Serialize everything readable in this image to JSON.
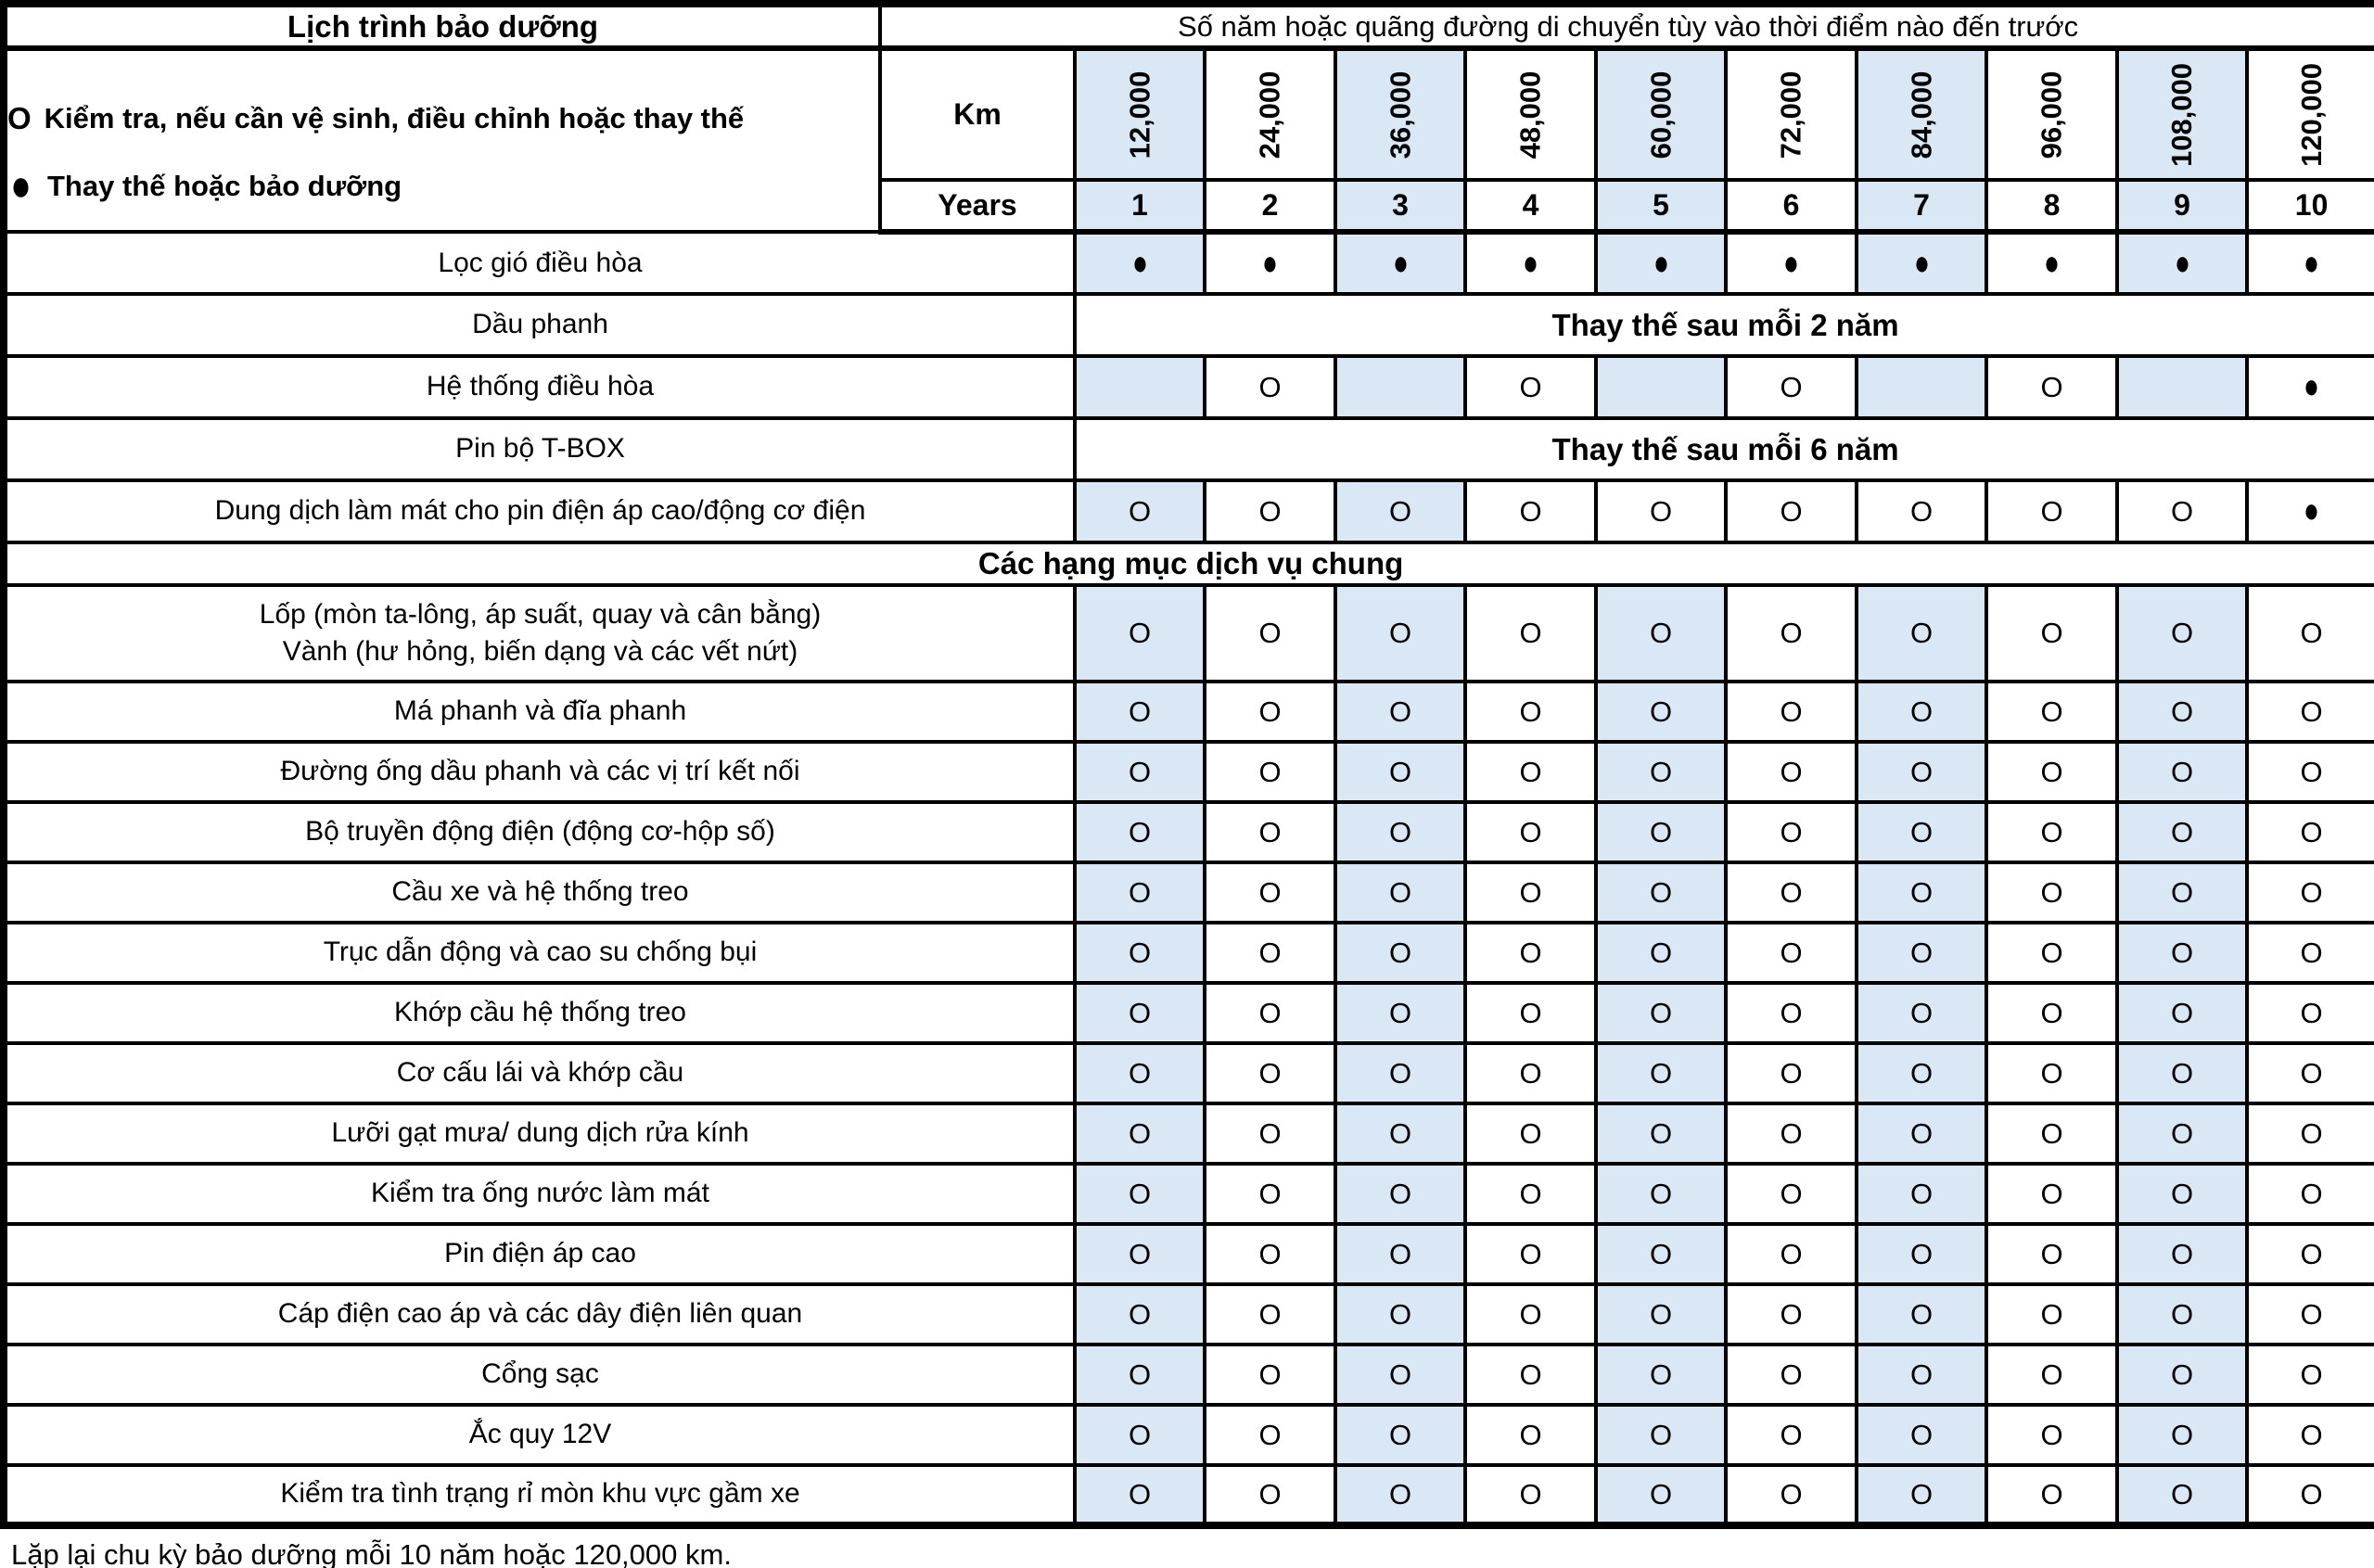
{
  "header": {
    "title": "Lịch trình bảo dưỡng",
    "subtitle": "Số năm hoặc quãng đường di chuyển tùy vào thời điểm nào đến trước",
    "legend": [
      {
        "symbol": "O",
        "text": "Kiểm tra, nếu cần vệ sinh, điều chỉnh hoặc thay thế"
      },
      {
        "symbol": "●",
        "text": "Thay thế hoặc bảo dưỡng"
      }
    ],
    "km_label": "Km",
    "years_label": "Years",
    "km_values": [
      "12,000",
      "24,000",
      "36,000",
      "48,000",
      "60,000",
      "72,000",
      "84,000",
      "96,000",
      "108,000",
      "120,000"
    ],
    "year_values": [
      "1",
      "2",
      "3",
      "4",
      "5",
      "6",
      "7",
      "8",
      "9",
      "10"
    ],
    "shaded_columns": [
      0,
      2,
      4,
      6,
      8
    ]
  },
  "symbols": {
    "inspect": "O",
    "replace": "●"
  },
  "colors": {
    "shaded_column": "#DAE7F4",
    "border": "#000000",
    "background": "#FFFFFF"
  },
  "sections": [
    {
      "title": "",
      "rows": [
        {
          "label": "Lọc gió điều hòa",
          "cells": [
            "●",
            "●",
            "●",
            "●",
            "●",
            "●",
            "●",
            "●",
            "●",
            "●"
          ],
          "shade": [
            0,
            2,
            4,
            6,
            8
          ]
        },
        {
          "label": "Dầu phanh",
          "merged": "Thay thế sau mỗi 2 năm"
        },
        {
          "label": "Hệ thống điều hòa",
          "cells": [
            "",
            "O",
            "",
            "O",
            "",
            "O",
            "",
            "O",
            "",
            "●"
          ],
          "shade": [
            0,
            2,
            4,
            6,
            8
          ]
        },
        {
          "label": "Pin bộ T-BOX",
          "merged": "Thay thế sau mỗi 6 năm"
        },
        {
          "label": "Dung dịch làm mát cho pin điện áp cao/động cơ điện",
          "cells": [
            "O",
            "O",
            "O",
            "O",
            "O",
            "O",
            "O",
            "O",
            "O",
            "●"
          ],
          "shade": [
            0,
            2
          ]
        }
      ]
    },
    {
      "title": "Các hạng mục dịch vụ chung",
      "rows": [
        {
          "label": "Lốp (mòn ta-lông, áp suất, quay và cân bằng)",
          "label2": "Vành (hư hỏng, biến dạng và các vết nứt)",
          "cells": [
            "O",
            "O",
            "O",
            "O",
            "O",
            "O",
            "O",
            "O",
            "O",
            "O"
          ],
          "shade": [
            0,
            2,
            4,
            6,
            8
          ]
        },
        {
          "label": "Má phanh và đĩa phanh",
          "cells": [
            "O",
            "O",
            "O",
            "O",
            "O",
            "O",
            "O",
            "O",
            "O",
            "O"
          ],
          "shade": [
            0,
            2,
            4,
            6,
            8
          ]
        },
        {
          "label": "Đường ống dầu phanh và các vị trí kết nối",
          "cells": [
            "O",
            "O",
            "O",
            "O",
            "O",
            "O",
            "O",
            "O",
            "O",
            "O"
          ],
          "shade": [
            0,
            2,
            4,
            6,
            8
          ]
        },
        {
          "label": "Bộ truyền động điện (động cơ-hộp số)",
          "cells": [
            "O",
            "O",
            "O",
            "O",
            "O",
            "O",
            "O",
            "O",
            "O",
            "O"
          ],
          "shade": [
            0,
            2,
            4,
            6,
            8
          ]
        },
        {
          "label": "Cầu xe và hệ thống treo",
          "cells": [
            "O",
            "O",
            "O",
            "O",
            "O",
            "O",
            "O",
            "O",
            "O",
            "O"
          ],
          "shade": [
            0,
            2,
            4,
            6,
            8
          ]
        },
        {
          "label": "Trục dẫn động và cao su chống bụi",
          "cells": [
            "O",
            "O",
            "O",
            "O",
            "O",
            "O",
            "O",
            "O",
            "O",
            "O"
          ],
          "shade": [
            0,
            2,
            4,
            6,
            8
          ]
        },
        {
          "label": "Khớp cầu hệ thống treo",
          "cells": [
            "O",
            "O",
            "O",
            "O",
            "O",
            "O",
            "O",
            "O",
            "O",
            "O"
          ],
          "shade": [
            0,
            2,
            4,
            6,
            8
          ]
        },
        {
          "label": "Cơ cấu lái và khớp cầu",
          "cells": [
            "O",
            "O",
            "O",
            "O",
            "O",
            "O",
            "O",
            "O",
            "O",
            "O"
          ],
          "shade": [
            0,
            2,
            4,
            6,
            8
          ]
        },
        {
          "label": "Lưỡi gạt mưa/ dung dịch rửa kính",
          "cells": [
            "O",
            "O",
            "O",
            "O",
            "O",
            "O",
            "O",
            "O",
            "O",
            "O"
          ],
          "shade": [
            0,
            2,
            4,
            6,
            8
          ]
        },
        {
          "label": "Kiểm tra ống nước làm mát",
          "cells": [
            "O",
            "O",
            "O",
            "O",
            "O",
            "O",
            "O",
            "O",
            "O",
            "O"
          ],
          "shade": [
            0,
            2,
            4,
            6,
            8
          ]
        },
        {
          "label": "Pin điện áp cao",
          "cells": [
            "O",
            "O",
            "O",
            "O",
            "O",
            "O",
            "O",
            "O",
            "O",
            "O"
          ],
          "shade": [
            0,
            2,
            4,
            6,
            8
          ]
        },
        {
          "label": "Cáp điện cao áp và các dây điện liên quan",
          "cells": [
            "O",
            "O",
            "O",
            "O",
            "O",
            "O",
            "O",
            "O",
            "O",
            "O"
          ],
          "shade": [
            0,
            2,
            4,
            6,
            8
          ]
        },
        {
          "label": "Cổng sạc",
          "cells": [
            "O",
            "O",
            "O",
            "O",
            "O",
            "O",
            "O",
            "O",
            "O",
            "O"
          ],
          "shade": [
            0,
            2,
            4,
            6,
            8
          ]
        },
        {
          "label": "Ắc quy 12V",
          "cells": [
            "O",
            "O",
            "O",
            "O",
            "O",
            "O",
            "O",
            "O",
            "O",
            "O"
          ],
          "shade": [
            0,
            2,
            4,
            6,
            8
          ]
        },
        {
          "label": "Kiểm tra tình trạng rỉ mòn khu vực gầm xe",
          "cells": [
            "O",
            "O",
            "O",
            "O",
            "O",
            "O",
            "O",
            "O",
            "O",
            "O"
          ],
          "shade": [
            0,
            2,
            4,
            6,
            8
          ]
        }
      ]
    }
  ],
  "footer": "Lặp lại chu kỳ bảo dưỡng mỗi 10 năm hoặc 120,000 km."
}
